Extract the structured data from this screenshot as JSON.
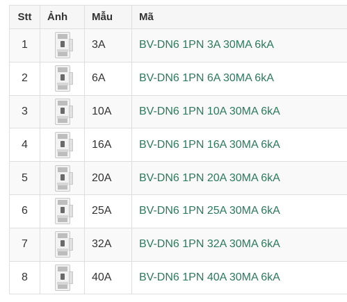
{
  "table": {
    "headers": {
      "stt": "Stt",
      "image": "Ảnh",
      "model": "Mẫu",
      "code": "Mã"
    },
    "rows": [
      {
        "stt": "1",
        "model": "3A",
        "code": "BV-DN6 1PN 3A 30MA 6kA",
        "icon": "breaker-thumbnail-icon"
      },
      {
        "stt": "2",
        "model": "6A",
        "code": "BV-DN6 1PN 6A 30MA 6kA",
        "icon": "breaker-thumbnail-icon"
      },
      {
        "stt": "3",
        "model": "10A",
        "code": "BV-DN6 1PN 10A 30MA 6kA",
        "icon": "breaker-thumbnail-icon"
      },
      {
        "stt": "4",
        "model": "16A",
        "code": "BV-DN6 1PN 16A 30MA 6kA",
        "icon": "breaker-thumbnail-icon"
      },
      {
        "stt": "5",
        "model": "20A",
        "code": "BV-DN6 1PN 20A 30MA 6kA",
        "icon": "breaker-thumbnail-icon"
      },
      {
        "stt": "6",
        "model": "25A",
        "code": "BV-DN6 1PN 25A 30MA 6kA",
        "icon": "breaker-thumbnail-icon"
      },
      {
        "stt": "7",
        "model": "32A",
        "code": "BV-DN6 1PN 32A 30MA 6kA",
        "icon": "breaker-thumbnail-icon"
      },
      {
        "stt": "8",
        "model": "40A",
        "code": "BV-DN6 1PN 40A 30MA 6kA",
        "icon": "breaker-thumbnail-icon"
      }
    ]
  },
  "colors": {
    "link": "#2b7a5c",
    "header_bg": "#f6f6f6",
    "stripe_bg": "#f9f9f9",
    "border": "#dedede"
  }
}
